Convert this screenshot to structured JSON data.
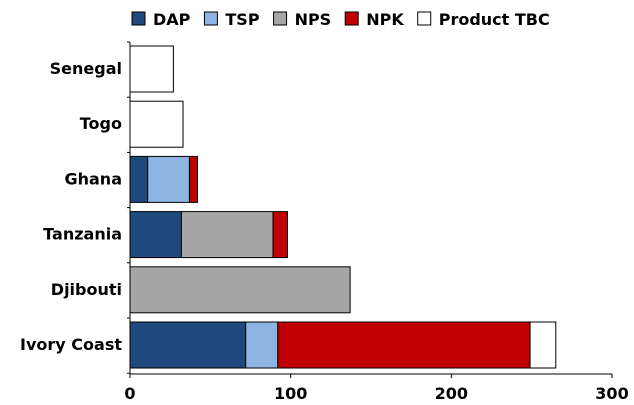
{
  "chart_data": {
    "type": "bar",
    "orientation": "horizontal",
    "stacked": true,
    "categories": [
      "Senegal",
      "Togo",
      "Ghana",
      "Tanzania",
      "Djibouti",
      "Ivory Coast"
    ],
    "series": [
      {
        "name": "DAP",
        "color": "#1f497d",
        "values": [
          0,
          0,
          11,
          32,
          0,
          72
        ]
      },
      {
        "name": "TSP",
        "color": "#8db4e2",
        "values": [
          0,
          0,
          26,
          0,
          0,
          20
        ]
      },
      {
        "name": "NPS",
        "color": "#a6a6a6",
        "values": [
          0,
          0,
          0,
          57,
          137,
          0
        ]
      },
      {
        "name": "NPK",
        "color": "#c00000",
        "values": [
          0,
          0,
          5,
          9,
          0,
          157
        ]
      },
      {
        "name": "Product TBC",
        "color": "#ffffff",
        "values": [
          27,
          33,
          0,
          0,
          0,
          16
        ]
      }
    ],
    "xlim": [
      0,
      300
    ],
    "xticks": [
      0,
      100,
      200,
      300
    ],
    "grid": false,
    "legend_position": "top"
  }
}
